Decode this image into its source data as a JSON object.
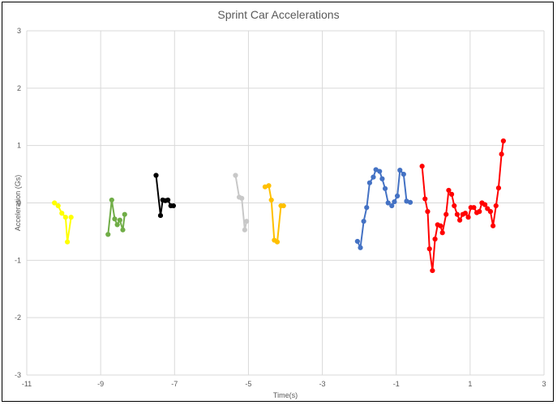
{
  "chart_data": {
    "type": "scatter",
    "title": "Sprint Car Accelerations",
    "xlabel": "Time(s)",
    "ylabel": "Acceleration (Gs)",
    "xlim": [
      -11,
      3
    ],
    "ylim": [
      -3,
      3
    ],
    "xticks": [
      -11,
      -9,
      -7,
      -5,
      -3,
      -1,
      1,
      3
    ],
    "yticks": [
      -3,
      -2,
      -1,
      0,
      1,
      2,
      3
    ],
    "xtick_labels": [
      "-11",
      "-9",
      "-7",
      "-5",
      "-3",
      "-1",
      "1",
      "3"
    ],
    "ytick_labels": [
      "-3",
      "-2",
      "-1",
      "0",
      "1",
      "2",
      "3"
    ],
    "grid": true,
    "series": [
      {
        "color": "#FFFF00",
        "points": [
          [
            -10.25,
            0.0
          ],
          [
            -10.15,
            -0.05
          ],
          [
            -10.05,
            -0.18
          ],
          [
            -9.95,
            -0.25
          ],
          [
            -9.9,
            -0.68
          ],
          [
            -9.8,
            -0.25
          ]
        ]
      },
      {
        "color": "#70AD47",
        "points": [
          [
            -8.8,
            -0.55
          ],
          [
            -8.7,
            0.05
          ],
          [
            -8.62,
            -0.28
          ],
          [
            -8.55,
            -0.38
          ],
          [
            -8.48,
            -0.3
          ],
          [
            -8.4,
            -0.47
          ],
          [
            -8.35,
            -0.2
          ]
        ]
      },
      {
        "color": "#000000",
        "points": [
          [
            -7.5,
            0.48
          ],
          [
            -7.38,
            -0.22
          ],
          [
            -7.32,
            0.05
          ],
          [
            -7.25,
            0.04
          ],
          [
            -7.18,
            0.05
          ],
          [
            -7.1,
            -0.05
          ],
          [
            -7.03,
            -0.05
          ]
        ]
      },
      {
        "color": "#C8C8C8",
        "points": [
          [
            -5.35,
            0.48
          ],
          [
            -5.25,
            0.1
          ],
          [
            -5.18,
            0.08
          ],
          [
            -5.1,
            -0.47
          ],
          [
            -5.05,
            -0.32
          ]
        ]
      },
      {
        "color": "#FFC000",
        "points": [
          [
            -4.55,
            0.28
          ],
          [
            -4.45,
            0.3
          ],
          [
            -4.38,
            0.05
          ],
          [
            -4.3,
            -0.65
          ],
          [
            -4.22,
            -0.68
          ],
          [
            -4.12,
            -0.05
          ],
          [
            -4.05,
            -0.05
          ]
        ]
      },
      {
        "color": "#4472C4",
        "points": [
          [
            -2.05,
            -0.67
          ],
          [
            -1.97,
            -0.78
          ],
          [
            -1.88,
            -0.32
          ],
          [
            -1.8,
            -0.08
          ],
          [
            -1.72,
            0.35
          ],
          [
            -1.62,
            0.45
          ],
          [
            -1.55,
            0.58
          ],
          [
            -1.45,
            0.55
          ],
          [
            -1.38,
            0.42
          ],
          [
            -1.3,
            0.25
          ],
          [
            -1.22,
            0.0
          ],
          [
            -1.12,
            -0.05
          ],
          [
            -1.05,
            0.02
          ],
          [
            -0.97,
            0.12
          ],
          [
            -0.9,
            0.57
          ],
          [
            -0.8,
            0.5
          ],
          [
            -0.72,
            0.03
          ],
          [
            -0.62,
            0.01
          ]
        ]
      },
      {
        "color": "#FF0000",
        "points": [
          [
            -0.3,
            0.64
          ],
          [
            -0.22,
            0.07
          ],
          [
            -0.15,
            -0.15
          ],
          [
            -0.1,
            -0.8
          ],
          [
            -0.02,
            -1.18
          ],
          [
            0.05,
            -0.63
          ],
          [
            0.12,
            -0.38
          ],
          [
            0.2,
            -0.4
          ],
          [
            0.25,
            -0.52
          ],
          [
            0.35,
            -0.2
          ],
          [
            0.42,
            0.22
          ],
          [
            0.5,
            0.15
          ],
          [
            0.57,
            -0.05
          ],
          [
            0.65,
            -0.2
          ],
          [
            0.72,
            -0.3
          ],
          [
            0.8,
            -0.2
          ],
          [
            0.87,
            -0.18
          ],
          [
            0.95,
            -0.25
          ],
          [
            1.02,
            -0.08
          ],
          [
            1.1,
            -0.08
          ],
          [
            1.18,
            -0.17
          ],
          [
            1.25,
            -0.15
          ],
          [
            1.32,
            0.0
          ],
          [
            1.4,
            -0.03
          ],
          [
            1.47,
            -0.1
          ],
          [
            1.55,
            -0.15
          ],
          [
            1.62,
            -0.4
          ],
          [
            1.7,
            -0.05
          ],
          [
            1.77,
            0.26
          ],
          [
            1.85,
            0.85
          ],
          [
            1.9,
            1.08
          ]
        ]
      }
    ]
  }
}
